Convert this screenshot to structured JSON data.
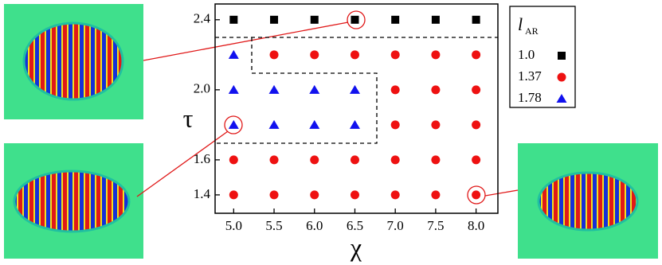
{
  "chart_data": {
    "type": "scatter",
    "x_label": "χ",
    "y_label": "τ",
    "legend_title": {
      "main": "l",
      "sub": "AR"
    },
    "xlim": [
      4.77,
      8.27
    ],
    "ylim": [
      1.295,
      2.49
    ],
    "xticks": [
      {
        "value": 5,
        "label": "5.0"
      },
      {
        "value": 5.5,
        "label": "5.5"
      },
      {
        "value": 6,
        "label": "6.0"
      },
      {
        "value": 6.5,
        "label": "6.5"
      },
      {
        "value": 7,
        "label": "7.0"
      },
      {
        "value": 7.5,
        "label": "7.5"
      },
      {
        "value": 8,
        "label": "8.0"
      }
    ],
    "yticks": [
      1.4,
      1.6,
      {
        "value": 2,
        "label": "2.0"
      },
      2.4
    ],
    "series": [
      {
        "name": "1.0",
        "color": "#000000",
        "marker": "square",
        "x": [
          5,
          5.5,
          6,
          6.5,
          7,
          7.5,
          8
        ],
        "values": [
          2.4,
          2.4,
          2.4,
          2.4,
          2.4,
          2.4,
          2.4
        ]
      },
      {
        "name": "1.37",
        "color": "#ee1111",
        "marker": "circle",
        "x": [
          5.5,
          6,
          6.5,
          7,
          7.5,
          8,
          7,
          7.5,
          8,
          7,
          7.5,
          8,
          5,
          5.5,
          6,
          6.5,
          7,
          7.5,
          8,
          5,
          5.5,
          6,
          6.5,
          7,
          7.5,
          8
        ],
        "values": [
          2.2,
          2.2,
          2.2,
          2.2,
          2.2,
          2.2,
          2.0,
          2.0,
          2.0,
          1.8,
          1.8,
          1.8,
          1.6,
          1.6,
          1.6,
          1.6,
          1.6,
          1.6,
          1.6,
          1.4,
          1.4,
          1.4,
          1.4,
          1.4,
          1.4,
          1.4
        ]
      },
      {
        "name": "1.78",
        "color": "#1111ee",
        "marker": "triangle",
        "x": [
          5,
          5,
          5.5,
          6,
          6.5,
          5,
          5.5,
          6,
          6.5
        ],
        "values": [
          2.2,
          2.0,
          2.0,
          2.0,
          2.0,
          1.8,
          1.8,
          1.8,
          1.8
        ]
      }
    ]
  }
}
